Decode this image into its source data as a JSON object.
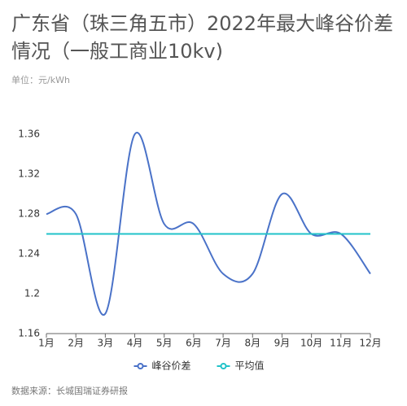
{
  "chart_data": {
    "type": "line",
    "title": "广东省（珠三角五市）2022年最大峰谷价差情况（一般工商业10kv)",
    "subtitle": "单位：元/kWh",
    "source": "数据来源：长城国瑞证券研报",
    "categories": [
      "1月",
      "2月",
      "3月",
      "4月",
      "5月",
      "6月",
      "7月",
      "8月",
      "9月",
      "10月",
      "11月",
      "12月"
    ],
    "series": [
      {
        "name": "峰谷价差",
        "color": "#4a72c8",
        "smooth": true,
        "values": [
          1.28,
          1.28,
          1.18,
          1.36,
          1.27,
          1.27,
          1.22,
          1.22,
          1.3,
          1.26,
          1.26,
          1.22
        ]
      },
      {
        "name": "平均值",
        "color": "#22c3c9",
        "smooth": false,
        "values": [
          1.26,
          1.26,
          1.26,
          1.26,
          1.26,
          1.26,
          1.26,
          1.26,
          1.26,
          1.26,
          1.26,
          1.26
        ]
      }
    ],
    "ylim": [
      1.16,
      1.36
    ],
    "yticks": [
      1.16,
      1.2,
      1.24,
      1.28,
      1.32,
      1.36
    ],
    "grid": false,
    "legend": "bottom"
  }
}
